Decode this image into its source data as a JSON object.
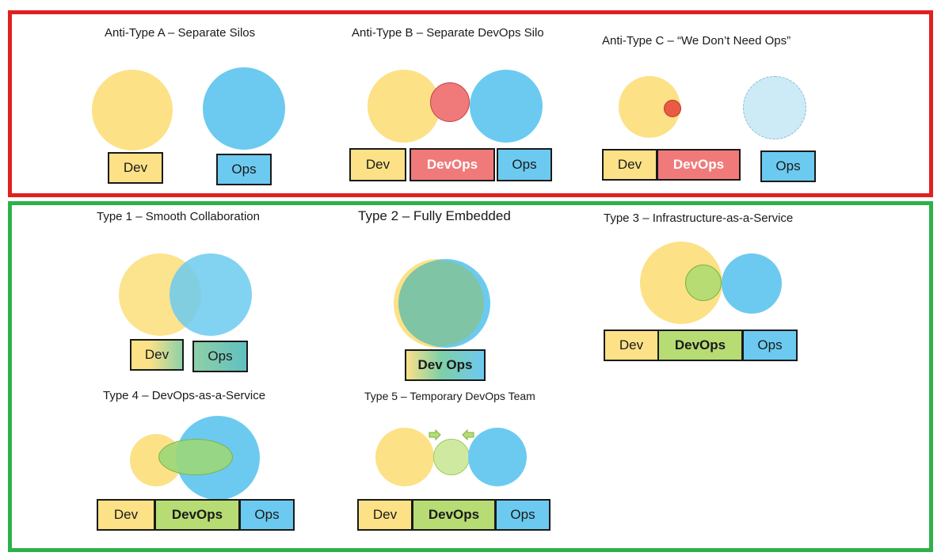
{
  "anti_types": {
    "a": {
      "title": "Anti-Type A – Separate Silos",
      "dev": "Dev",
      "ops": "Ops"
    },
    "b": {
      "title": "Anti-Type B – Separate DevOps Silo",
      "dev": "Dev",
      "devops": "DevOps",
      "ops": "Ops"
    },
    "c": {
      "title": "Anti-Type C – “We Don’t Need Ops”",
      "dev": "Dev",
      "devops": "DevOps",
      "ops": "Ops"
    }
  },
  "types": {
    "t1": {
      "title": "Type 1 – Smooth Collaboration",
      "dev": "Dev",
      "ops": "Ops"
    },
    "t2": {
      "title": "Type 2 – Fully Embedded",
      "devops": "Dev Ops"
    },
    "t3": {
      "title": "Type 3 – Infrastructure-as-a-Service",
      "dev": "Dev",
      "devops": "DevOps",
      "ops": "Ops"
    },
    "t4": {
      "title": "Type 4 – DevOps-as-a-Service",
      "dev": "Dev",
      "devops": "DevOps",
      "ops": "Ops"
    },
    "t5": {
      "title": "Type 5 – Temporary DevOps Team",
      "dev": "Dev",
      "devops": "DevOps",
      "ops": "Ops"
    }
  },
  "colors": {
    "anti_frame": "#e0201f",
    "good_frame": "#2eb14b",
    "dev": "#fce187",
    "ops": "#6ccaf0",
    "devops_silo": "#f07a7a",
    "devops_team": "#b7dc74"
  }
}
